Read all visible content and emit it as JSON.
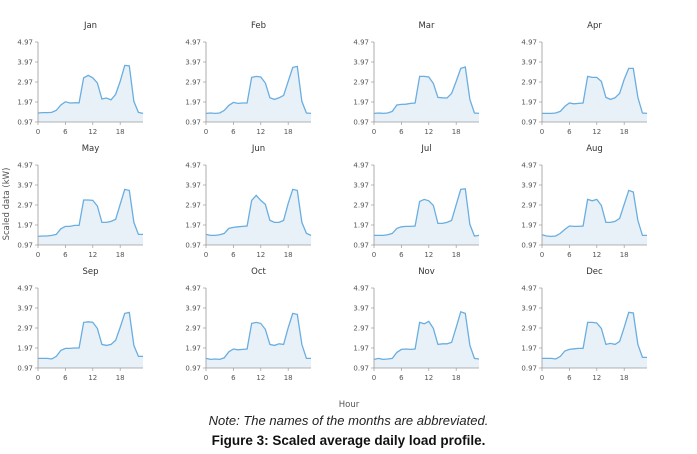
{
  "chart_data": {
    "type": "area",
    "ylabel": "Scaled data (kW)",
    "xlabel": "Hour",
    "x": [
      0,
      1,
      2,
      3,
      4,
      5,
      6,
      7,
      8,
      9,
      10,
      11,
      12,
      13,
      14,
      15,
      16,
      17,
      18,
      19,
      20,
      21,
      22,
      23
    ],
    "xticks": [
      0,
      6,
      12,
      18
    ],
    "yticks": [
      0.97,
      1.97,
      2.97,
      3.97,
      4.97
    ],
    "ylim": [
      0.97,
      4.97
    ],
    "xlim": [
      0,
      23
    ],
    "grid": false,
    "colors": {
      "line": "#6aaee0",
      "fill": "#e8f1f8",
      "axis": "#9a9a9a"
    },
    "panels": [
      {
        "title": "Jan",
        "values": [
          1.42,
          1.44,
          1.44,
          1.45,
          1.55,
          1.82,
          1.98,
          1.92,
          1.93,
          1.93,
          3.18,
          3.3,
          3.18,
          2.92,
          2.12,
          2.17,
          2.08,
          2.35,
          3.0,
          3.8,
          3.78,
          2.0,
          1.45,
          1.4
        ]
      },
      {
        "title": "Feb",
        "values": [
          1.4,
          1.42,
          1.4,
          1.42,
          1.55,
          1.8,
          1.95,
          1.9,
          1.92,
          1.92,
          3.2,
          3.25,
          3.22,
          2.92,
          2.18,
          2.1,
          2.18,
          2.3,
          3.0,
          3.7,
          3.75,
          2.0,
          1.42,
          1.4
        ]
      },
      {
        "title": "Mar",
        "values": [
          1.4,
          1.42,
          1.4,
          1.42,
          1.5,
          1.82,
          1.85,
          1.86,
          1.9,
          1.92,
          3.25,
          3.25,
          3.22,
          2.9,
          2.2,
          2.18,
          2.17,
          2.4,
          3.0,
          3.65,
          3.72,
          2.1,
          1.42,
          1.4
        ]
      },
      {
        "title": "Apr",
        "values": [
          1.4,
          1.4,
          1.4,
          1.42,
          1.5,
          1.75,
          1.92,
          1.88,
          1.9,
          1.92,
          3.25,
          3.2,
          3.2,
          3.0,
          2.2,
          2.1,
          2.18,
          2.4,
          3.1,
          3.65,
          3.65,
          2.2,
          1.42,
          1.4
        ]
      },
      {
        "title": "May",
        "values": [
          1.4,
          1.42,
          1.42,
          1.45,
          1.5,
          1.78,
          1.9,
          1.9,
          1.95,
          1.95,
          3.22,
          3.22,
          3.2,
          2.92,
          2.1,
          2.1,
          2.15,
          2.25,
          3.0,
          3.75,
          3.7,
          2.1,
          1.5,
          1.5
        ]
      },
      {
        "title": "Jun",
        "values": [
          1.5,
          1.45,
          1.45,
          1.48,
          1.55,
          1.8,
          1.85,
          1.88,
          1.9,
          1.92,
          3.2,
          3.45,
          3.2,
          3.0,
          2.2,
          2.1,
          2.1,
          2.2,
          3.05,
          3.75,
          3.7,
          2.1,
          1.55,
          1.45
        ]
      },
      {
        "title": "Jul",
        "values": [
          1.45,
          1.45,
          1.45,
          1.48,
          1.55,
          1.8,
          1.88,
          1.9,
          1.9,
          1.92,
          3.15,
          3.25,
          3.18,
          2.95,
          2.05,
          2.05,
          2.1,
          2.2,
          2.98,
          3.75,
          3.78,
          2.0,
          1.42,
          1.45
        ]
      },
      {
        "title": "Aug",
        "values": [
          1.48,
          1.42,
          1.4,
          1.42,
          1.55,
          1.75,
          1.92,
          1.9,
          1.9,
          1.92,
          3.25,
          3.18,
          3.25,
          2.95,
          2.1,
          2.1,
          2.15,
          2.3,
          3.0,
          3.7,
          3.62,
          2.2,
          1.45,
          1.45
        ]
      },
      {
        "title": "Sep",
        "values": [
          1.45,
          1.45,
          1.45,
          1.42,
          1.55,
          1.85,
          1.95,
          1.95,
          1.97,
          1.97,
          3.25,
          3.28,
          3.25,
          2.95,
          2.15,
          2.1,
          2.15,
          2.35,
          3.0,
          3.7,
          3.75,
          2.1,
          1.55,
          1.55
        ]
      },
      {
        "title": "Oct",
        "values": [
          1.45,
          1.4,
          1.42,
          1.4,
          1.48,
          1.78,
          1.92,
          1.88,
          1.9,
          1.92,
          3.2,
          3.25,
          3.2,
          2.9,
          2.15,
          2.1,
          2.18,
          2.15,
          2.98,
          3.7,
          3.65,
          2.15,
          1.45,
          1.45
        ]
      },
      {
        "title": "Nov",
        "values": [
          1.4,
          1.45,
          1.4,
          1.42,
          1.45,
          1.75,
          1.9,
          1.92,
          1.9,
          1.92,
          3.25,
          3.18,
          3.3,
          2.95,
          2.15,
          2.18,
          2.18,
          2.25,
          3.0,
          3.78,
          3.7,
          2.1,
          1.45,
          1.42
        ]
      },
      {
        "title": "Dec",
        "values": [
          1.45,
          1.45,
          1.45,
          1.42,
          1.55,
          1.82,
          1.9,
          1.93,
          1.95,
          1.95,
          3.25,
          3.25,
          3.22,
          2.95,
          2.15,
          2.2,
          2.15,
          2.3,
          3.0,
          3.75,
          3.72,
          2.15,
          1.5,
          1.5
        ]
      }
    ]
  },
  "caption": {
    "note": "Note: The names of the months are abbreviated.",
    "title": "Figure 3: Scaled average daily load profile."
  }
}
